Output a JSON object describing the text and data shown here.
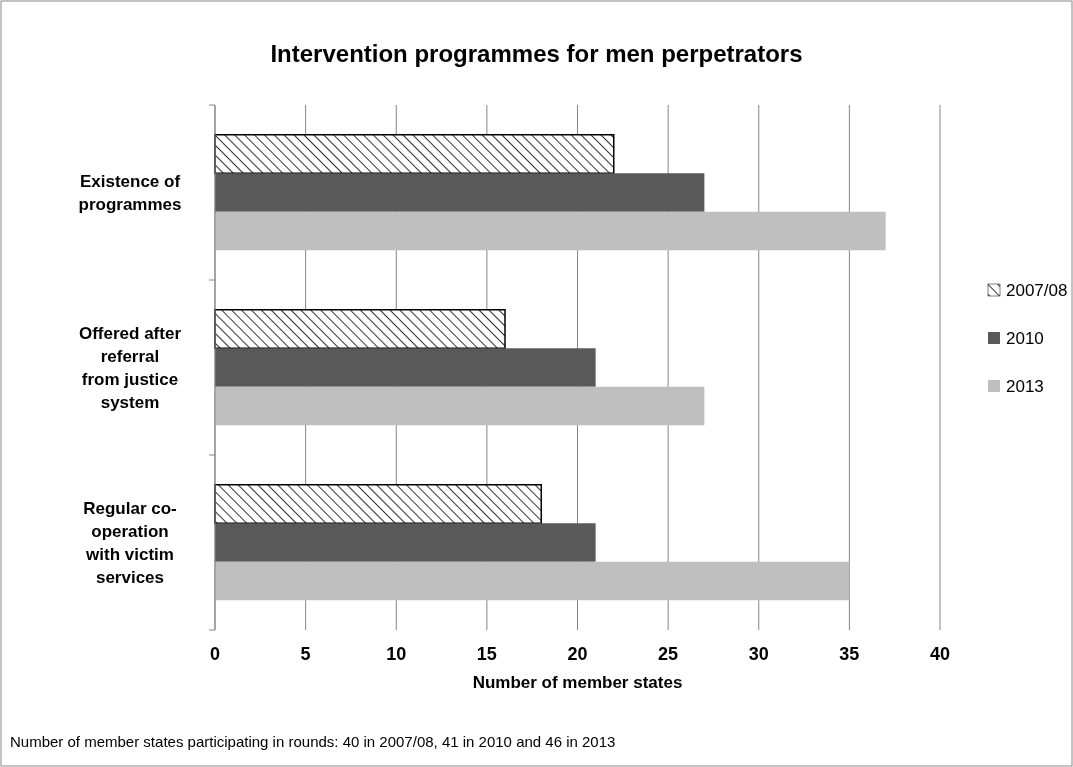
{
  "chart_data": {
    "type": "bar",
    "orientation": "horizontal",
    "title": "Intervention programmes for men perpetrators",
    "xlabel": "Number of member states",
    "categories": [
      "Existence of\nprogrammes",
      "Offered after\nreferral\nfrom justice\nsystem",
      "Regular co-\noperation\nwith victim\nservices"
    ],
    "series": [
      {
        "name": "2007/08",
        "color": "#000000",
        "values": [
          22,
          16,
          18
        ]
      },
      {
        "name": "2010",
        "color": "#595959",
        "values": [
          27,
          21,
          21
        ]
      },
      {
        "name": "2013",
        "color": "#bfbfbf",
        "values": [
          37,
          27,
          35
        ]
      }
    ],
    "xlim": [
      0,
      40
    ],
    "xticks": [
      0,
      5,
      10,
      15,
      20,
      25,
      30,
      35,
      40
    ],
    "grid": "x",
    "legend": "right",
    "annotations": [
      "Number of member states participating in rounds: 40 in 2007/08, 41 in 2010 and 46 in 2013"
    ]
  }
}
